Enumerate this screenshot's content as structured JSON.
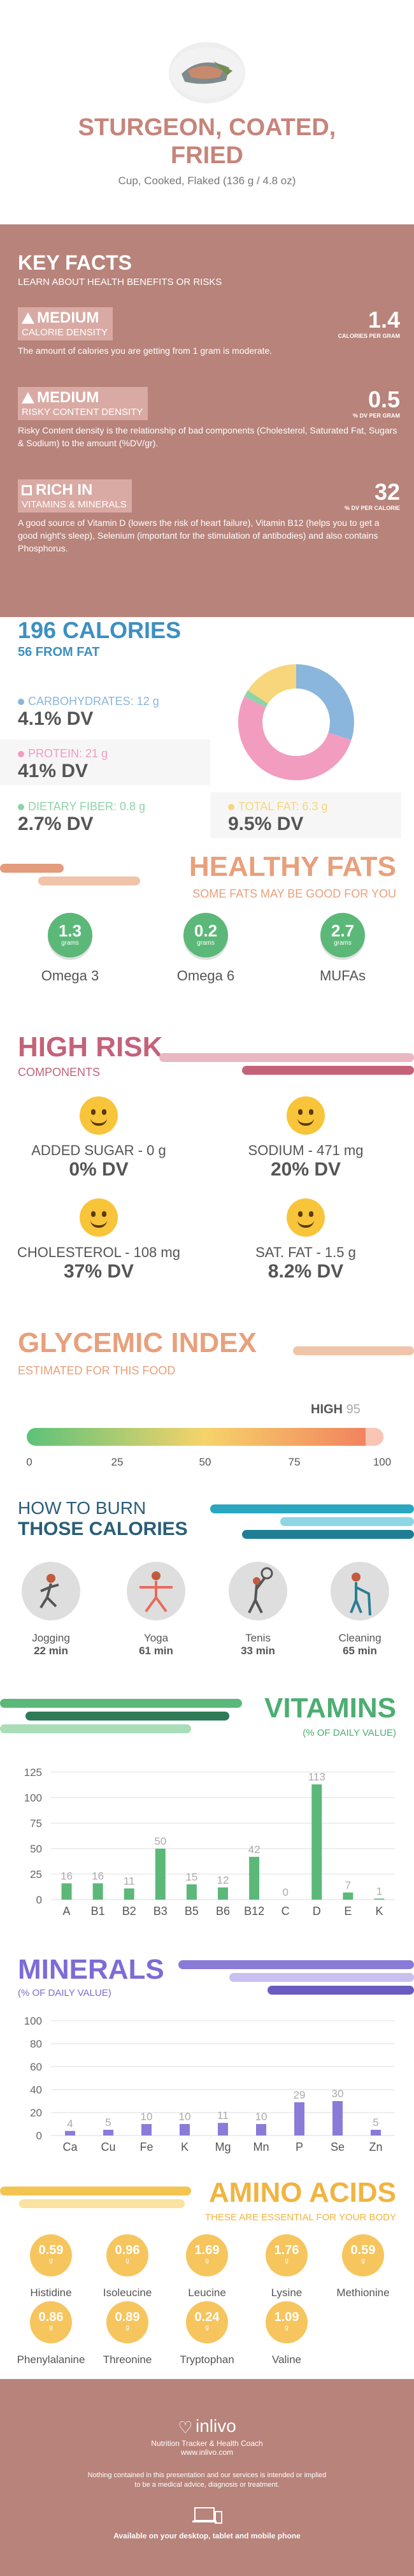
{
  "food": {
    "title_line1": "STURGEON, COATED,",
    "title_line2": "FRIED",
    "serving": "Cup, Cooked, Flaked (136 g / 4.8 oz)"
  },
  "key_facts": {
    "title": "KEY FACTS",
    "subtitle": "LEARN ABOUT HEALTH BENEFITS OR RISKS",
    "items": [
      {
        "level": "MEDIUM",
        "name": "CALORIE DENSITY",
        "value": "1.4",
        "unit": "CALORIES PER GRAM",
        "desc": "The amount of calories you are getting from 1 gram is moderate."
      },
      {
        "level": "MEDIUM",
        "name": "RISKY CONTENT DENSITY",
        "value": "0.5",
        "unit": "% DV PER GRAM",
        "desc": "Risky Content density is the relationship of bad components (Cholesterol, Saturated Fat, Sugars & Sodium) to the amount (%DV/gr)."
      },
      {
        "level": "RICH  IN",
        "name": "VITAMINS & MINERALS",
        "value": "32",
        "unit": "% DV PER CALORIE",
        "desc": "A good source of Vitamin D (lowers the risk of heart failure), Vitamin B12 (helps you to get a good night's sleep), Selenium (important for the stimulation of antibodies) and also contains Phosphorus."
      }
    ]
  },
  "calories": {
    "title": "196 CALORIES",
    "from_fat": "56 FROM FAT",
    "macros": [
      {
        "label": "CARBOHYDRATES: 12 g",
        "dv": "4.1% DV",
        "color": "#8ab6dd"
      },
      {
        "label": "PROTEIN: 21 g",
        "dv": "41% DV",
        "color": "#f29cc0"
      },
      {
        "label": "DIETARY FIBER: 0.8 g",
        "dv": "2.7% DV",
        "color": "#8fd3a8"
      },
      {
        "label": "TOTAL FAT: 6.3 g",
        "dv": "9.5% DV",
        "color": "#f7d67c"
      }
    ],
    "donut": [
      {
        "name": "carbs",
        "value": 12,
        "color": "#8ab6dd"
      },
      {
        "name": "protein",
        "value": 21,
        "color": "#f29cc0"
      },
      {
        "name": "fiber",
        "value": 0.8,
        "color": "#8fd3a8"
      },
      {
        "name": "fat",
        "value": 6.3,
        "color": "#f7d67c"
      }
    ]
  },
  "healthy_fats": {
    "title": "HEALTHY FATS",
    "subtitle": "SOME FATS MAY BE GOOD FOR YOU",
    "items": [
      {
        "value": "1.3",
        "unit": "grams",
        "label": "Omega 3"
      },
      {
        "value": "0.2",
        "unit": "grams",
        "label": "Omega 6"
      },
      {
        "value": "2.7",
        "unit": "grams",
        "label": "MUFAs"
      }
    ]
  },
  "high_risk": {
    "title": "HIGH RISK",
    "subtitle": "COMPONENTS",
    "items": [
      {
        "label": "ADDED SUGAR - 0 g",
        "dv": "0% DV"
      },
      {
        "label": "SODIUM - 471 mg",
        "dv": "20% DV"
      },
      {
        "label": "CHOLESTEROL - 108 mg",
        "dv": "37% DV"
      },
      {
        "label": "SAT. FAT - 1.5 g",
        "dv": "8.2% DV"
      }
    ]
  },
  "glycemic": {
    "title": "GLYCEMIC INDEX",
    "subtitle": "ESTIMATED FOR THIS FOOD",
    "level": "HIGH",
    "value": "95",
    "ticks": [
      "0",
      "25",
      "50",
      "75",
      "100"
    ]
  },
  "burn": {
    "title_line1": "HOW TO BURN",
    "title_line2": "THOSE CALORIES",
    "items": [
      {
        "label": "Jogging",
        "time": "22 min"
      },
      {
        "label": "Yoga",
        "time": "61 min"
      },
      {
        "label": "Tenis",
        "time": "33 min"
      },
      {
        "label": "Cleaning",
        "time": "65 min"
      }
    ]
  },
  "vitamins": {
    "title": "VITAMINS",
    "subtitle": "(% OF DAILY VALUE)",
    "color": "#5cb878"
  },
  "minerals": {
    "title": "MINERALS",
    "subtitle": "(% OF DAILY VALUE)",
    "color": "#8a7bd9"
  },
  "amino": {
    "title": "AMINO ACIDS",
    "subtitle": "THESE ARE ESSENTIAL FOR YOUR BODY",
    "unit": "g",
    "items": [
      {
        "value": "0.59",
        "label": "Histidine"
      },
      {
        "value": "0.96",
        "label": "Isoleucine"
      },
      {
        "value": "1.69",
        "label": "Leucine"
      },
      {
        "value": "1.76",
        "label": "Lysine"
      },
      {
        "value": "0.59",
        "label": "Methionine"
      },
      {
        "value": "0.86",
        "label": "Phenylalanine"
      },
      {
        "value": "0.89",
        "label": "Threonine"
      },
      {
        "value": "0.24",
        "label": "Tryptophan"
      },
      {
        "value": "1.09",
        "label": "Valine"
      }
    ]
  },
  "footer": {
    "brand": "inlivo",
    "tagline": "Nutrition Tracker & Health Coach",
    "site": "www.inlivo.com",
    "disclaimer1": "Nothing contained in this presentation and our services is intended or implied",
    "disclaimer2": "to be a medical advice, diagnosis or treatment.",
    "available": "Available on your desktop, tablet and mobile phone"
  },
  "chart_data": [
    {
      "type": "bar",
      "categories": [
        "A",
        "B1",
        "B2",
        "B3",
        "B5",
        "B6",
        "B12",
        "C",
        "D",
        "E",
        "K"
      ],
      "values": [
        16,
        16,
        11,
        50,
        15,
        12,
        42,
        0,
        113,
        7,
        1
      ],
      "ylim": [
        0,
        125
      ],
      "yticks": [
        "0",
        "25",
        "50",
        "75",
        "100",
        "125"
      ]
    },
    {
      "type": "bar",
      "categories": [
        "Ca",
        "Cu",
        "Fe",
        "K",
        "Mg",
        "Mn",
        "P",
        "Se",
        "Zn"
      ],
      "values": [
        4,
        5,
        10,
        10,
        11,
        10,
        29,
        30,
        5
      ],
      "ylim": [
        0,
        100
      ],
      "yticks": [
        "0",
        "20",
        "40",
        "60",
        "80",
        "100"
      ]
    }
  ]
}
